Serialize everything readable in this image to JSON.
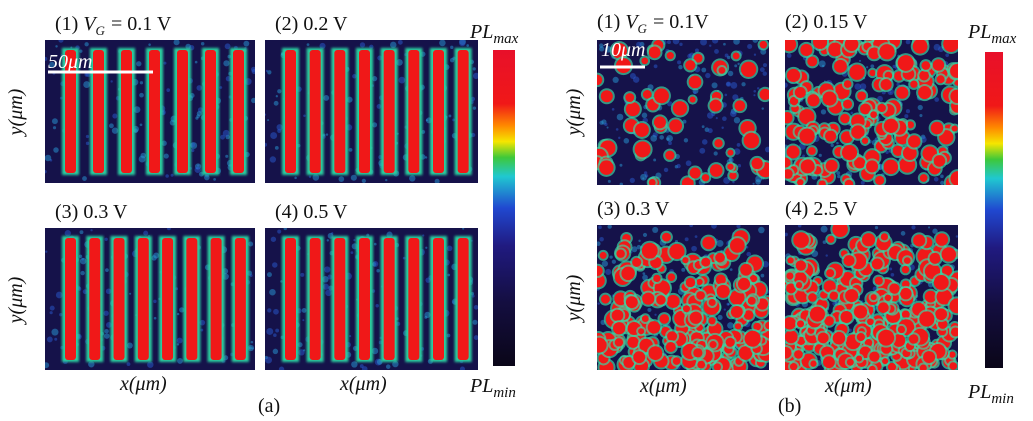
{
  "panels": [
    {
      "caption": "(a)",
      "scale_bar": "50μm",
      "y_axis_label": "y(μm)",
      "x_axis_label": "x(μm)",
      "colorbar": {
        "max": {
          "main": "PL",
          "sub": "max"
        },
        "min": {
          "main": "PL",
          "sub": "min"
        }
      },
      "images": [
        {
          "number": "(1)",
          "var": "V",
          "sub": "G",
          "value": "= 0.1 V"
        },
        {
          "number": "(2)",
          "value": "0.2 V"
        },
        {
          "number": "(3)",
          "value": "0.3 V"
        },
        {
          "number": "(4)",
          "value": "0.5 V"
        }
      ]
    },
    {
      "caption": "(b)",
      "scale_bar": "10μm",
      "y_axis_label": "y(μm)",
      "x_axis_label": "x(μm)",
      "colorbar": {
        "max": {
          "main": "PL",
          "sub": "max"
        },
        "min": {
          "main": "PL",
          "sub": "min"
        }
      },
      "images": [
        {
          "number": "(1)",
          "var": "V",
          "sub": "G",
          "value": "= 0.1V"
        },
        {
          "number": "(2)",
          "value": "0.15 V"
        },
        {
          "number": "(3)",
          "value": "0.3 V"
        },
        {
          "number": "(4)",
          "value": "2.5 V"
        }
      ]
    }
  ]
}
